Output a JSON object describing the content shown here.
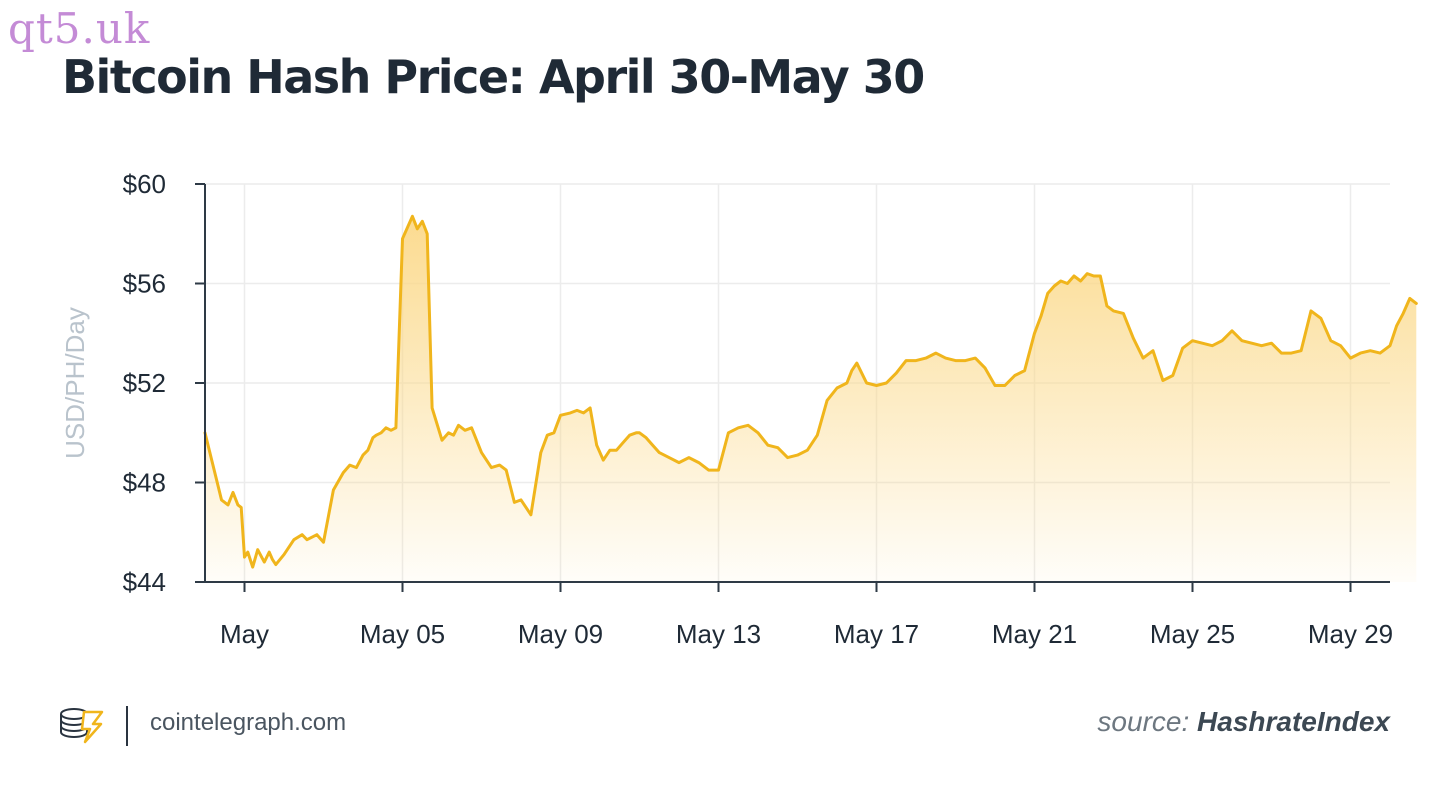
{
  "watermark": "qt5.uk",
  "footer": {
    "site": "cointelegraph.com",
    "source_prefix": "source:",
    "source_name": "HashrateIndex"
  },
  "colors": {
    "line": "#f0b51c",
    "fill_top": "#fbd98a",
    "text": "#1f2a36",
    "ylabel": "#b9c3cc",
    "grid": "#ececec",
    "axis": "#2e3a46"
  },
  "chart_data": {
    "type": "area",
    "title": "Bitcoin Hash Price: April 30-May 30",
    "ylabel": "USD/PH/Day",
    "ylim": [
      44,
      60
    ],
    "xlim": [
      "2024-04-30",
      "2024-05-30"
    ],
    "yticks": [
      44,
      48,
      52,
      56,
      60
    ],
    "ytick_labels": [
      "$44",
      "$48",
      "$52",
      "$56",
      "$60"
    ],
    "xticks": [
      "2024-05-01",
      "2024-05-05",
      "2024-05-09",
      "2024-05-13",
      "2024-05-17",
      "2024-05-21",
      "2024-05-25",
      "2024-05-29"
    ],
    "xtick_labels": [
      "May",
      "May 05",
      "May 09",
      "May 13",
      "May 17",
      "May 21",
      "May 25",
      "May 29"
    ],
    "grid": true,
    "series": [
      {
        "x": [
          "2024-04-30 00:00",
          "2024-04-30 10:00",
          "2024-04-30 14:00",
          "2024-04-30 17:00",
          "2024-04-30 20:00",
          "2024-04-30 22:00",
          "2024-05-01 00:00",
          "2024-05-01 02:00",
          "2024-05-01 05:00",
          "2024-05-01 08:00",
          "2024-05-01 12:00",
          "2024-05-01 15:00",
          "2024-05-01 17:00",
          "2024-05-01 19:00",
          "2024-05-02 00:00",
          "2024-05-02 06:00",
          "2024-05-02 11:00",
          "2024-05-02 14:00",
          "2024-05-02 20:00",
          "2024-05-03 00:00",
          "2024-05-03 06:00",
          "2024-05-03 12:00",
          "2024-05-03 16:00",
          "2024-05-03 20:00",
          "2024-05-04 00:00",
          "2024-05-04 03:00",
          "2024-05-04 06:00",
          "2024-05-04 08:00",
          "2024-05-04 11:00",
          "2024-05-04 14:00",
          "2024-05-04 17:00",
          "2024-05-04 20:00",
          "2024-05-05 00:00",
          "2024-05-05 06:00",
          "2024-05-05 09:00",
          "2024-05-05 12:00",
          "2024-05-05 15:00",
          "2024-05-05 18:00",
          "2024-05-06 00:00",
          "2024-05-06 04:00",
          "2024-05-06 07:00",
          "2024-05-06 10:00",
          "2024-05-06 14:00",
          "2024-05-06 18:00",
          "2024-05-07 00:00",
          "2024-05-07 06:00",
          "2024-05-07 11:00",
          "2024-05-07 15:00",
          "2024-05-07 20:00",
          "2024-05-08 00:00",
          "2024-05-08 06:00",
          "2024-05-08 12:00",
          "2024-05-08 16:00",
          "2024-05-08 20:00",
          "2024-05-09 00:00",
          "2024-05-09 06:00",
          "2024-05-09 10:00",
          "2024-05-09 14:00",
          "2024-05-09 18:00",
          "2024-05-09 22:00",
          "2024-05-10 02:00",
          "2024-05-10 06:00",
          "2024-05-10 10:00",
          "2024-05-10 14:00",
          "2024-05-10 18:00",
          "2024-05-10 22:00",
          "2024-05-11 00:00",
          "2024-05-11 04:00",
          "2024-05-11 08:00",
          "2024-05-11 12:00",
          "2024-05-11 18:00",
          "2024-05-12 00:00",
          "2024-05-12 06:00",
          "2024-05-12 12:00",
          "2024-05-12 18:00",
          "2024-05-13 00:00",
          "2024-05-13 06:00",
          "2024-05-13 12:00",
          "2024-05-13 18:00",
          "2024-05-14 00:00",
          "2024-05-14 06:00",
          "2024-05-14 12:00",
          "2024-05-14 18:00",
          "2024-05-15 00:00",
          "2024-05-15 06:00",
          "2024-05-15 12:00",
          "2024-05-15 18:00",
          "2024-05-16 00:00",
          "2024-05-16 06:00",
          "2024-05-16 09:00",
          "2024-05-16 12:00",
          "2024-05-16 18:00",
          "2024-05-17 00:00",
          "2024-05-17 06:00",
          "2024-05-17 12:00",
          "2024-05-17 18:00",
          "2024-05-18 00:00",
          "2024-05-18 06:00",
          "2024-05-18 12:00",
          "2024-05-18 18:00",
          "2024-05-19 00:00",
          "2024-05-19 06:00",
          "2024-05-19 12:00",
          "2024-05-19 18:00",
          "2024-05-20 00:00",
          "2024-05-20 06:00",
          "2024-05-20 12:00",
          "2024-05-20 18:00",
          "2024-05-21 00:00",
          "2024-05-21 04:00",
          "2024-05-21 08:00",
          "2024-05-21 12:00",
          "2024-05-21 16:00",
          "2024-05-21 20:00",
          "2024-05-22 00:00",
          "2024-05-22 04:00",
          "2024-05-22 08:00",
          "2024-05-22 12:00",
          "2024-05-22 16:00",
          "2024-05-22 20:00",
          "2024-05-23 00:00",
          "2024-05-23 06:00",
          "2024-05-23 12:00",
          "2024-05-23 18:00",
          "2024-05-24 00:00",
          "2024-05-24 06:00",
          "2024-05-24 12:00",
          "2024-05-24 18:00",
          "2024-05-25 00:00",
          "2024-05-25 06:00",
          "2024-05-25 12:00",
          "2024-05-25 18:00",
          "2024-05-26 00:00",
          "2024-05-26 06:00",
          "2024-05-26 12:00",
          "2024-05-26 18:00",
          "2024-05-27 00:00",
          "2024-05-27 06:00",
          "2024-05-27 12:00",
          "2024-05-27 18:00",
          "2024-05-28 00:00",
          "2024-05-28 06:00",
          "2024-05-28 12:00",
          "2024-05-28 18:00",
          "2024-05-29 00:00",
          "2024-05-29 06:00",
          "2024-05-29 12:00",
          "2024-05-29 18:00",
          "2024-05-30 00:00",
          "2024-05-30 04:00",
          "2024-05-30 08:00",
          "2024-05-30 12:00",
          "2024-05-30 16:00"
        ],
        "y": [
          50.0,
          47.3,
          47.1,
          47.6,
          47.1,
          47.0,
          45.0,
          45.2,
          44.6,
          45.3,
          44.8,
          45.2,
          44.9,
          44.7,
          45.1,
          45.7,
          45.9,
          45.7,
          45.9,
          45.6,
          47.7,
          48.4,
          48.7,
          48.6,
          49.1,
          49.3,
          49.8,
          49.9,
          50.0,
          50.2,
          50.1,
          50.2,
          57.8,
          58.7,
          58.2,
          58.5,
          58.0,
          51.0,
          49.7,
          50.0,
          49.9,
          50.3,
          50.1,
          50.2,
          49.2,
          48.6,
          48.7,
          48.5,
          47.2,
          47.3,
          46.7,
          49.2,
          49.9,
          50.0,
          50.7,
          50.8,
          50.9,
          50.8,
          51.0,
          49.5,
          48.9,
          49.3,
          49.3,
          49.6,
          49.9,
          50.0,
          50.0,
          49.8,
          49.5,
          49.2,
          49.0,
          48.8,
          49.0,
          48.8,
          48.5,
          48.5,
          50.0,
          50.2,
          50.3,
          50.0,
          49.5,
          49.4,
          49.0,
          49.1,
          49.3,
          49.9,
          51.3,
          51.8,
          52.0,
          52.5,
          52.8,
          52.0,
          51.9,
          52.0,
          52.4,
          52.9,
          52.9,
          53.0,
          53.2,
          53.0,
          52.9,
          52.9,
          53.0,
          52.6,
          51.9,
          51.9,
          52.3,
          52.5,
          54.0,
          54.7,
          55.6,
          55.9,
          56.1,
          56.0,
          56.3,
          56.1,
          56.4,
          56.3,
          56.3,
          55.1,
          54.9,
          54.8,
          53.8,
          53.0,
          53.3,
          52.1,
          52.3,
          53.4,
          53.7,
          53.6,
          53.5,
          53.7,
          54.1,
          53.7,
          53.6,
          53.5,
          53.6,
          53.2,
          53.2,
          53.3,
          54.9,
          54.6,
          53.7,
          53.5,
          53.0,
          53.2,
          53.3,
          53.2,
          53.5,
          54.3,
          54.8,
          55.4,
          55.2
        ]
      }
    ]
  }
}
